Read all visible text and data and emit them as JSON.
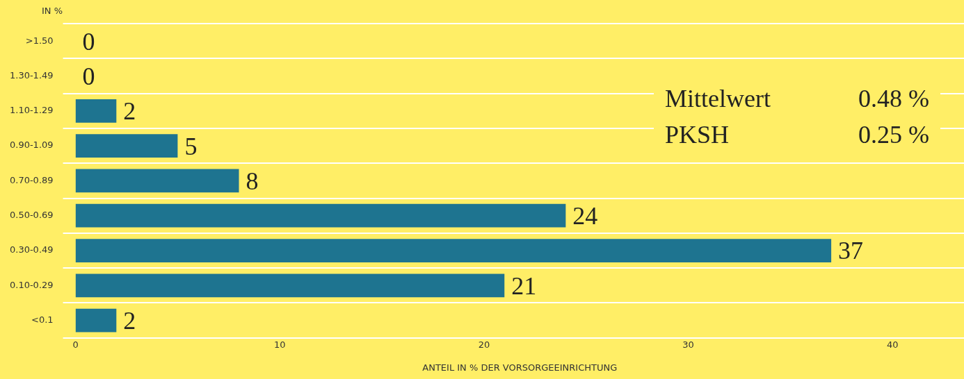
{
  "chart_data": {
    "type": "bar",
    "orientation": "horizontal",
    "categories": [
      ">1.50",
      "1.30-1.49",
      "1.10-1.29",
      "0.90-1.09",
      "0.70-0.89",
      "0.50-0.69",
      "0.30-0.49",
      "0.10-0.29",
      "<0.1"
    ],
    "values": [
      0,
      0,
      2,
      5,
      8,
      24,
      37,
      21,
      2
    ],
    "color": "#1e7490",
    "xlim": [
      0,
      43.5
    ],
    "xticks": [
      0,
      10,
      20,
      30,
      40
    ],
    "xlabel": "ANTEIL IN % DER VORSORGEEINRICHTUNG",
    "ylabel": "IN %",
    "data_labels": true,
    "grid": "y",
    "annotations": [
      "Mittelwert",
      "0.48 %",
      "PKSH",
      "0.25 %"
    ]
  }
}
